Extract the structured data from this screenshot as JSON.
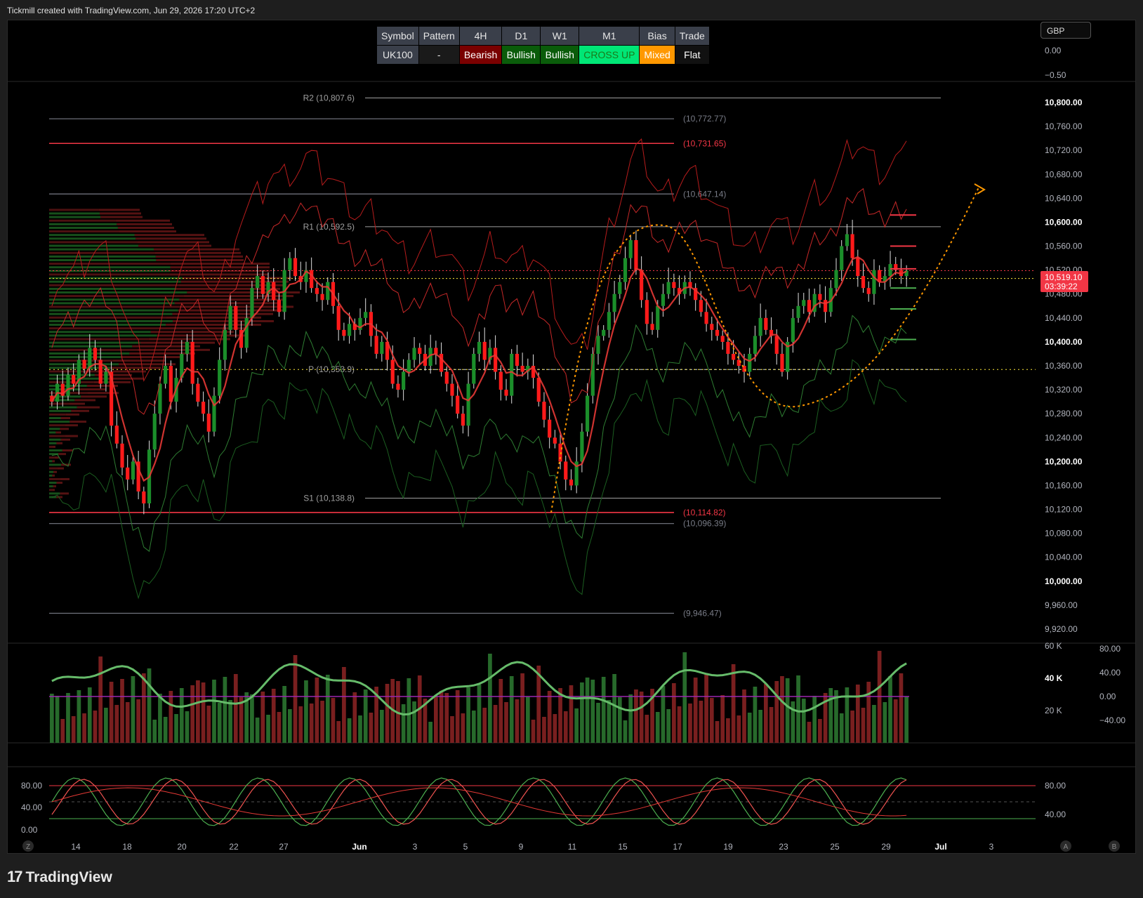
{
  "header": {
    "caption": "Tickmill created with TradingView.com, Jun 29, 2026 17:20 UTC+2"
  },
  "footer": {
    "logo_mark": "17",
    "logo_text": "TradingView"
  },
  "currency_box": "GBP",
  "status_table": {
    "headers": [
      "Symbol",
      "Pattern",
      "4H",
      "D1",
      "W1",
      "M1",
      "Bias",
      "Trade"
    ],
    "values": [
      "UK100",
      "-",
      "Bearish",
      "Bullish",
      "Bullish",
      "CROSS UP",
      "Mixed",
      "Flat"
    ],
    "colors": [
      "#3a3f4a",
      "#1a1a1a",
      "#7a0000",
      "#0a5c0a",
      "#0a5c0a",
      "#00e676",
      "#ff9800",
      "#111111"
    ],
    "text_colors": [
      "#e6e6e6",
      "#e6e6e6",
      "#ffffff",
      "#ffffff",
      "#ffffff",
      "#1a7a1a",
      "#ffffff",
      "#ffffff"
    ]
  },
  "chart_data": [
    {
      "type": "candlestick",
      "title": "",
      "ylim": [
        9920,
        10830
      ],
      "y_ticks": [
        "10,800.00",
        "10,760.00",
        "10,720.00",
        "10,680.00",
        "10,640.00",
        "10,600.00",
        "10,560.00",
        "10,520.00",
        "10,480.00",
        "10,440.00",
        "10,400.00",
        "10,360.00",
        "10,320.00",
        "10,280.00",
        "10,240.00",
        "10,200.00",
        "10,160.00",
        "10,120.00",
        "10,080.00",
        "10,040.00",
        "10,000.00",
        "9,960.00",
        "9,920.00"
      ],
      "y_tick_values": [
        10800,
        10760,
        10720,
        10680,
        10640,
        10600,
        10560,
        10520,
        10480,
        10440,
        10400,
        10360,
        10320,
        10280,
        10240,
        10200,
        10160,
        10120,
        10080,
        10040,
        10000,
        9960,
        9920
      ],
      "bold_ticks": [
        10800,
        10600,
        10400,
        10200,
        10000
      ],
      "x_ticks": [
        "14",
        "18",
        "20",
        "22",
        "27",
        "Jun",
        "3",
        "5",
        "9",
        "11",
        "15",
        "17",
        "19",
        "23",
        "25",
        "29",
        "Jul",
        "3"
      ],
      "last_price": "10,519.10",
      "countdown": "03:39:22",
      "pivot_levels": [
        {
          "label": "R2 (10,807.6)",
          "value": 10807.6
        },
        {
          "label": "R1 (10,592.5)",
          "value": 10592.5
        },
        {
          "label": "P (10,353.9)",
          "value": 10353.9
        },
        {
          "label": "S1 (10,138.8)",
          "value": 10138.8
        }
      ],
      "horizontal_levels": [
        {
          "label": "(10,772.77)",
          "value": 10772.77,
          "color": "#787b86"
        },
        {
          "label": "(10,731.65)",
          "value": 10731.65,
          "color": "#f23645"
        },
        {
          "label": "(10,647.14)",
          "value": 10647.14,
          "color": "#787b86"
        },
        {
          "label": "(10,114.82)",
          "value": 10114.82,
          "color": "#f23645"
        },
        {
          "label": "(10,096.39)",
          "value": 10096.39,
          "color": "#787b86"
        },
        {
          "label": "(9,946.47)",
          "value": 9946.47,
          "color": "#787b86"
        }
      ],
      "close_series": [
        10300,
        10330,
        10310,
        10345,
        10330,
        10370,
        10355,
        10390,
        10370,
        10330,
        10350,
        10260,
        10230,
        10190,
        10170,
        10200,
        10150,
        10130,
        10220,
        10280,
        10330,
        10360,
        10300,
        10340,
        10380,
        10400,
        10330,
        10300,
        10280,
        10250,
        10310,
        10370,
        10420,
        10460,
        10420,
        10390,
        10440,
        10490,
        10510,
        10480,
        10500,
        10470,
        10450,
        10520,
        10540,
        10510,
        10500,
        10520,
        10490,
        10480,
        10470,
        10500,
        10460,
        10420,
        10410,
        10430,
        10420,
        10440,
        10450,
        10410,
        10380,
        10400,
        10370,
        10330,
        10320,
        10350,
        10370,
        10390,
        10380,
        10360,
        10390,
        10380,
        10350,
        10330,
        10310,
        10280,
        10260,
        10330,
        10380,
        10400,
        10370,
        10390,
        10350,
        10320,
        10310,
        10380,
        10360,
        10350,
        10360,
        10340,
        10300,
        10270,
        10240,
        10230,
        10200,
        10170,
        10160,
        10200,
        10250,
        10310,
        10380,
        10410,
        10420,
        10450,
        10480,
        10500,
        10540,
        10570,
        10520,
        10470,
        10430,
        10420,
        10460,
        10480,
        10500,
        10490,
        10480,
        10500,
        10490,
        10470,
        10450,
        10430,
        10420,
        10410,
        10400,
        10380,
        10370,
        10360,
        10350,
        10380,
        10410,
        10440,
        10420,
        10410,
        10380,
        10350,
        10400,
        10440,
        10460,
        10470,
        10450,
        10480,
        10470,
        10450,
        10490,
        10520,
        10560,
        10580,
        10540,
        10510,
        10490,
        10480,
        10520,
        10500,
        10510,
        10530,
        10520,
        10510,
        10519.1
      ]
    },
    {
      "type": "bar",
      "title": "",
      "y_ticks_left": [
        "60 K",
        "40 K",
        "20 K"
      ],
      "y_ticks_right": [
        "80.00",
        "40.00",
        "0.00",
        "−40.00"
      ]
    },
    {
      "type": "line",
      "title": "",
      "y_ticks_left": [
        "80.00",
        "40.00",
        "0.00"
      ],
      "y_ticks_right": [
        "80.00",
        "40.00"
      ]
    }
  ],
  "top_axis": [
    "0.00",
    "−0.50"
  ],
  "bottom_buttons": {
    "left": "Z",
    "a": "A",
    "b": "B"
  }
}
